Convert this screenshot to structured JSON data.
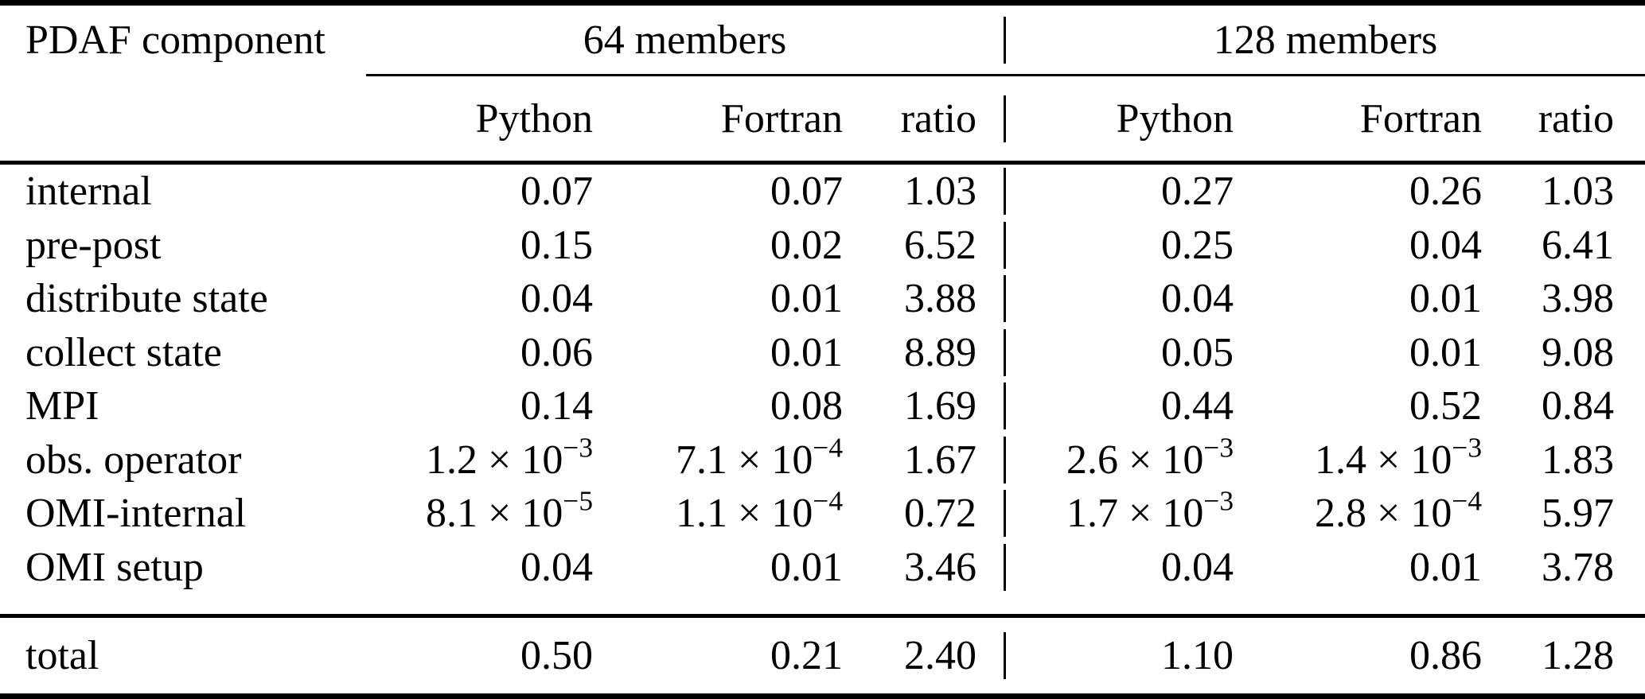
{
  "page": {
    "background_color": "#ffffff",
    "text_color": "#000000"
  },
  "table": {
    "corner_header": "PDAF component",
    "group_headers": [
      "64 members",
      "128 members"
    ],
    "subheaders": [
      "Python",
      "Fortran",
      "ratio",
      "Python",
      "Fortran",
      "ratio"
    ],
    "rows": [
      {
        "label": "internal",
        "values": [
          "0.07",
          "0.07",
          "1.03",
          "0.27",
          "0.26",
          "1.03"
        ]
      },
      {
        "label": "pre-post",
        "values": [
          "0.15",
          "0.02",
          "6.52",
          "0.25",
          "0.04",
          "6.41"
        ]
      },
      {
        "label": "distribute state",
        "values": [
          "0.04",
          "0.01",
          "3.88",
          "0.04",
          "0.01",
          "3.98"
        ]
      },
      {
        "label": "collect state",
        "values": [
          "0.06",
          "0.01",
          "8.89",
          "0.05",
          "0.01",
          "9.08"
        ]
      },
      {
        "label": "MPI",
        "values": [
          "0.14",
          "0.08",
          "1.69",
          "0.44",
          "0.52",
          "0.84"
        ]
      },
      {
        "label": "obs. operator",
        "values": [
          "1.2 × 10^−3",
          "7.1 × 10^−4",
          "1.67",
          "2.6 × 10^−3",
          "1.4 × 10^−3",
          "1.83"
        ]
      },
      {
        "label": "OMI-internal",
        "values": [
          "8.1 × 10^−5",
          "1.1 × 10^−4",
          "0.72",
          "1.7 × 10^−3",
          "2.8 × 10^−4",
          "5.97"
        ]
      },
      {
        "label": "OMI setup",
        "values": [
          "0.04",
          "0.01",
          "3.46",
          "0.04",
          "0.01",
          "3.78"
        ]
      }
    ],
    "total_row": {
      "label": "total",
      "values": [
        "0.50",
        "0.21",
        "2.40",
        "1.10",
        "0.86",
        "1.28"
      ]
    }
  }
}
